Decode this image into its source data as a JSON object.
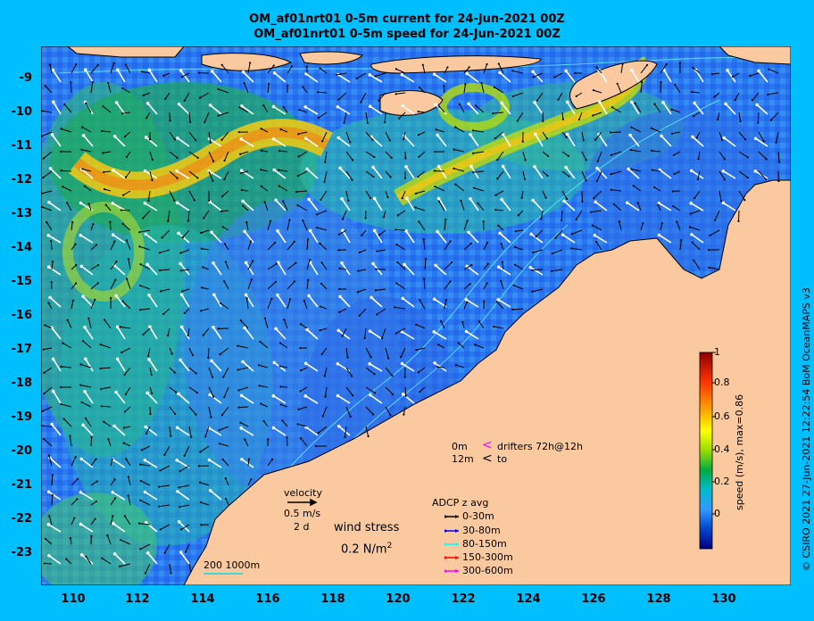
{
  "titles": {
    "line1": "OM_af01nrt01 0-5m current for 24-Jun-2021 00Z",
    "line2": "OM_af01nrt01 0-5m speed for 24-Jun-2021 00Z"
  },
  "axes": {
    "x_ticks": [
      "110",
      "112",
      "114",
      "116",
      "118",
      "120",
      "122",
      "124",
      "126",
      "128",
      "130"
    ],
    "y_ticks": [
      "-9",
      "-10",
      "-11",
      "-12",
      "-13",
      "-14",
      "-15",
      "-16",
      "-17",
      "-18",
      "-19",
      "-20",
      "-21",
      "-22",
      "-23"
    ]
  },
  "colorbar": {
    "label": "speed (m/s), max=0.86",
    "ticks": [
      "1",
      "0.8",
      "0.6",
      "0.4",
      "0.2",
      "0"
    ],
    "colors": [
      "#8b0000",
      "#ff3300",
      "#ffaa00",
      "#ffff00",
      "#99dd00",
      "#00aa44",
      "#00bbcc",
      "#3399ff",
      "#0044cc",
      "#000080"
    ]
  },
  "legend": {
    "velocity_label": "velocity",
    "velocity_value": "0.5 m/s",
    "velocity_duration": "2 d",
    "wind_label": "wind stress",
    "wind_value": "0.2 N/m",
    "wind_exp": "2",
    "drifters_0m": "0m",
    "drifters_12m": "12m",
    "drifters_text": "drifters 72h@12h",
    "drifters_to": "to",
    "adcp_title": "ADCP z avg",
    "adcp_rows": [
      {
        "label": "0-30m",
        "color": "#000000"
      },
      {
        "label": "30-80m",
        "color": "#0000ff"
      },
      {
        "label": "80-150m",
        "color": "#00ffff"
      },
      {
        "label": "150-300m",
        "color": "#ff0000"
      },
      {
        "label": "300-600m",
        "color": "#ff00ff"
      }
    ],
    "scale_label": "200  1000m"
  },
  "credit": "© CSIRO 2021   27-Jun-2021 12:22:54 BoM OceanMAPS v3",
  "map_colors": {
    "land": "#fac9a0",
    "water_low": "#2f6fff",
    "water_mid": "#21c0c8",
    "current_high": "#f2c500"
  }
}
